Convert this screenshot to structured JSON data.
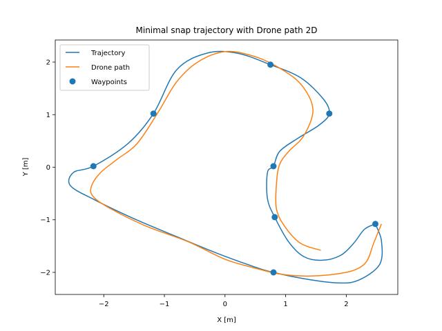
{
  "chart_data": {
    "type": "line",
    "title": "Minimal snap trajectory with Drone path 2D",
    "xlabel": "X [m]",
    "ylabel": "Y [m]",
    "xlim": [
      -2.8,
      2.85
    ],
    "ylim": [
      -2.42,
      2.42
    ],
    "xticks": [
      -2,
      -1,
      0,
      1,
      2
    ],
    "yticks": [
      -2,
      -1,
      0,
      1,
      2
    ],
    "grid": false,
    "legend_position": "top-left",
    "series": [
      {
        "name": "Trajectory",
        "kind": "line",
        "color": "#1f77b4",
        "points": [
          [
            2.48,
            -1.08
          ],
          [
            2.3,
            -1.18
          ],
          [
            2.12,
            -1.45
          ],
          [
            1.9,
            -1.68
          ],
          [
            1.6,
            -1.77
          ],
          [
            1.3,
            -1.7
          ],
          [
            1.05,
            -1.42
          ],
          [
            0.82,
            -0.95
          ],
          [
            0.7,
            -0.6
          ],
          [
            0.7,
            -0.1
          ],
          [
            0.8,
            0.02
          ],
          [
            0.9,
            0.3
          ],
          [
            1.2,
            0.55
          ],
          [
            1.55,
            0.8
          ],
          [
            1.72,
            1.02
          ],
          [
            1.62,
            1.3
          ],
          [
            1.25,
            1.7
          ],
          [
            0.75,
            1.95
          ],
          [
            0.2,
            2.17
          ],
          [
            -0.3,
            2.17
          ],
          [
            -0.8,
            1.85
          ],
          [
            -1.18,
            1.02
          ],
          [
            -1.6,
            0.45
          ],
          [
            -2.17,
            0.02
          ],
          [
            -2.5,
            -0.1
          ],
          [
            -2.55,
            -0.35
          ],
          [
            -2.15,
            -0.62
          ],
          [
            -1.5,
            -0.98
          ],
          [
            -0.8,
            -1.32
          ],
          [
            -0.1,
            -1.65
          ],
          [
            0.5,
            -1.9
          ],
          [
            0.8,
            -2.0
          ],
          [
            1.3,
            -2.12
          ],
          [
            1.85,
            -2.2
          ],
          [
            2.2,
            -2.15
          ],
          [
            2.55,
            -1.85
          ],
          [
            2.58,
            -1.4
          ],
          [
            2.48,
            -1.08
          ]
        ]
      },
      {
        "name": "Drone path",
        "kind": "line",
        "color": "#ff7f0e",
        "points": [
          [
            2.58,
            -1.08
          ],
          [
            2.45,
            -1.45
          ],
          [
            2.33,
            -1.8
          ],
          [
            2.1,
            -1.97
          ],
          [
            1.7,
            -2.05
          ],
          [
            1.3,
            -2.07
          ],
          [
            0.9,
            -2.03
          ],
          [
            0.5,
            -1.92
          ],
          [
            0.0,
            -1.75
          ],
          [
            -0.6,
            -1.42
          ],
          [
            -1.3,
            -1.12
          ],
          [
            -1.9,
            -0.78
          ],
          [
            -2.18,
            -0.55
          ],
          [
            -2.2,
            -0.35
          ],
          [
            -2.05,
            -0.1
          ],
          [
            -1.78,
            0.15
          ],
          [
            -1.45,
            0.45
          ],
          [
            -1.1,
            1.05
          ],
          [
            -0.8,
            1.62
          ],
          [
            -0.45,
            2.0
          ],
          [
            0.0,
            2.2
          ],
          [
            0.45,
            2.12
          ],
          [
            0.85,
            1.92
          ],
          [
            1.25,
            1.58
          ],
          [
            1.45,
            1.1
          ],
          [
            1.3,
            0.6
          ],
          [
            1.05,
            0.3
          ],
          [
            0.9,
            0.05
          ],
          [
            0.85,
            -0.3
          ],
          [
            0.85,
            -0.8
          ],
          [
            1.0,
            -1.15
          ],
          [
            1.25,
            -1.45
          ],
          [
            1.58,
            -1.58
          ]
        ]
      },
      {
        "name": "Waypoints",
        "kind": "scatter",
        "color": "#1f77b4",
        "points": [
          [
            2.48,
            -1.08
          ],
          [
            0.8,
            -2.0
          ],
          [
            -2.17,
            0.02
          ],
          [
            -1.18,
            1.02
          ],
          [
            0.75,
            1.95
          ],
          [
            1.72,
            1.02
          ],
          [
            0.8,
            0.02
          ],
          [
            0.82,
            -0.95
          ]
        ]
      }
    ]
  }
}
